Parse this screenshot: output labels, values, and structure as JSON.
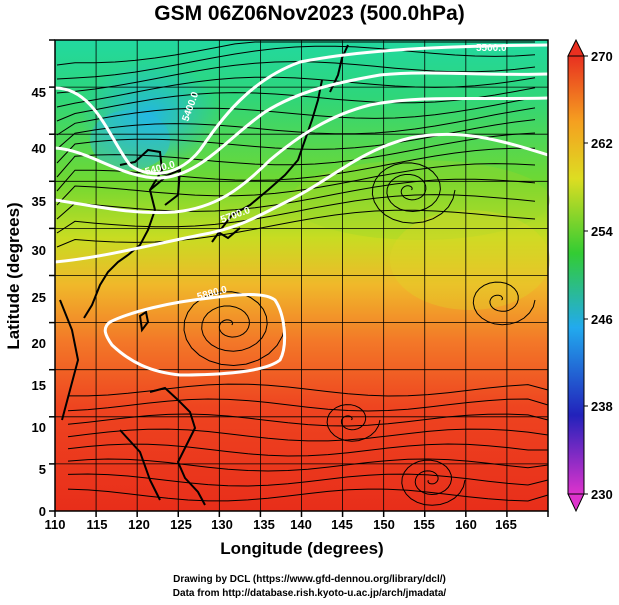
{
  "title": "GSM 06Z06Nov2023 (500.0hPa)",
  "x_axis": {
    "label": "Longitude (degrees)",
    "ticks": [
      "110",
      "115",
      "120",
      "125",
      "130",
      "135",
      "140",
      "145",
      "150",
      "155",
      "160",
      "165"
    ]
  },
  "y_axis": {
    "label": "Latitude (degrees)",
    "ticks": [
      "0",
      "5",
      "10",
      "15",
      "20",
      "25",
      "30",
      "35",
      "40",
      "45"
    ]
  },
  "colorbar": {
    "ticks": [
      "230",
      "238",
      "246",
      "254",
      "262",
      "270"
    ],
    "colors": [
      "#dd33cc",
      "#2222bb",
      "#22aaee",
      "#33cc33",
      "#dddd22",
      "#f5a020",
      "#e83020"
    ]
  },
  "contour_labels": [
    "5400.0",
    "5500.0",
    "5700.0",
    "5880.0",
    "5400.0"
  ],
  "credits": {
    "line1": "Drawing by DCL (https://www.gfd-dennou.org/library/dcl/)",
    "line2": "Data from http://database.rish.kyoto-u.ac.jp/arch/jmadata/"
  }
}
